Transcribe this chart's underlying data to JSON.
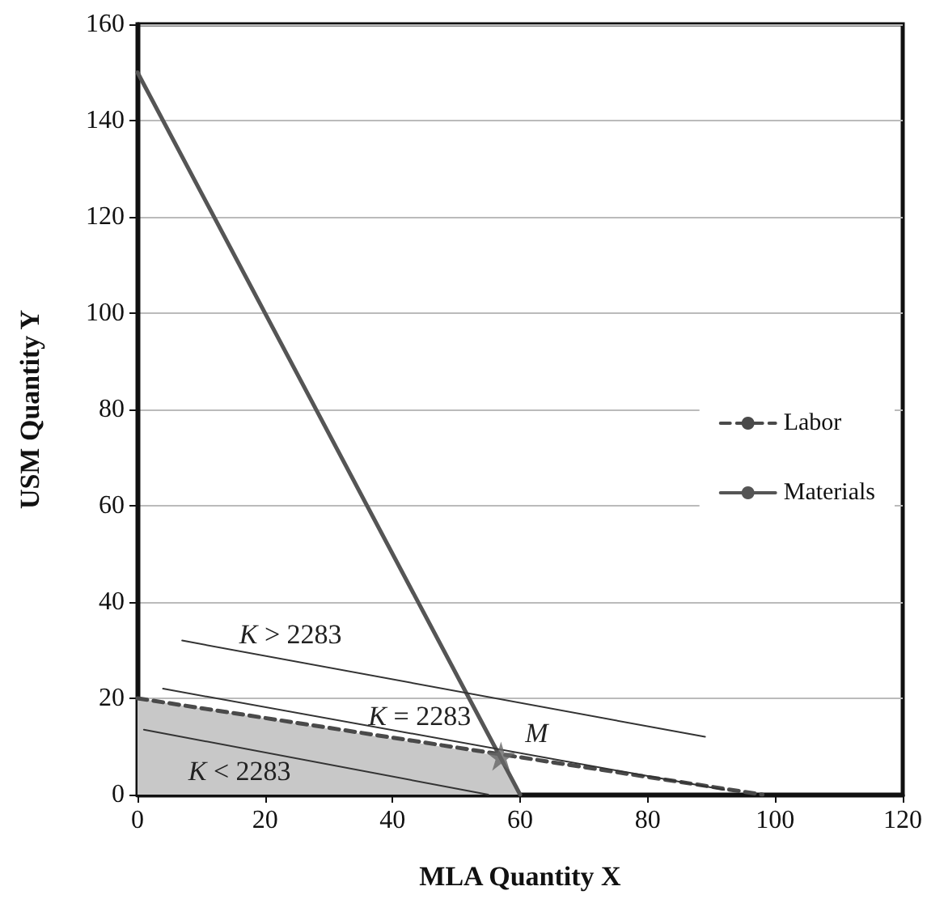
{
  "chart_data": {
    "type": "line",
    "xlabel": "MLA Quantity X",
    "ylabel": "USM Quantity Y",
    "xlim": [
      0,
      120
    ],
    "xticks": [
      0,
      20,
      40,
      60,
      80,
      100,
      120
    ],
    "ylim": [
      0,
      160
    ],
    "yticks": [
      0,
      20,
      40,
      60,
      80,
      100,
      120,
      140,
      160
    ],
    "grid": "y",
    "legend": "right",
    "series": [
      {
        "type": "area",
        "color": "#c8c8c8",
        "x": [
          0,
          57,
          60
        ],
        "values": [
          20,
          8,
          0
        ]
      },
      {
        "name": "Labor",
        "color": "#4a4a4a",
        "line_style": "dashed",
        "x": [
          0,
          98
        ],
        "values": [
          20,
          0
        ]
      },
      {
        "name": "Materials",
        "color": "#555555",
        "line_style": "solid",
        "x": [
          0,
          60
        ],
        "values": [
          150,
          0
        ]
      },
      {
        "color": "#333333",
        "line_style": "solid",
        "x": [
          7,
          89
        ],
        "values": [
          32,
          12
        ]
      },
      {
        "color": "#333333",
        "line_style": "solid",
        "x": [
          4,
          92
        ],
        "values": [
          22,
          1
        ]
      },
      {
        "color": "#333333",
        "line_style": "solid",
        "x": [
          1,
          55
        ],
        "values": [
          13.5,
          0
        ]
      },
      {
        "type": "scatter",
        "marker": "star",
        "color": "#666666",
        "x": [
          57
        ],
        "values": [
          8
        ]
      }
    ],
    "annotations": [
      {
        "text": "K > 2283",
        "x": 24,
        "y": 27.9
      },
      {
        "text": "K = 2283",
        "x": 45,
        "y": 12.2
      },
      {
        "text": "K < 2283",
        "x": 16,
        "y": 9.5
      },
      {
        "text": "M",
        "x": 57,
        "y": 8
      }
    ]
  }
}
